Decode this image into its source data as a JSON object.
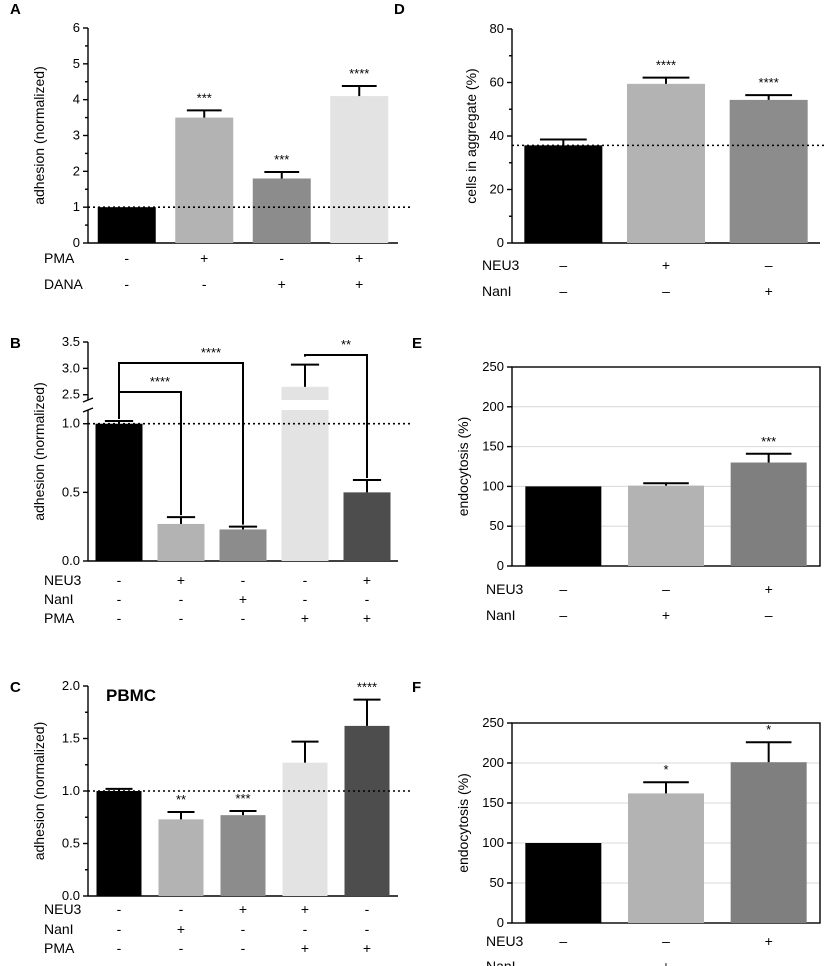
{
  "chart_data": [
    {
      "panel": "A",
      "type": "bar",
      "ylabel": "adhesion (normalized)",
      "ylim": [
        0,
        6
      ],
      "yticks": [
        0,
        1,
        2,
        3,
        4,
        5,
        6
      ],
      "ref_line": 1,
      "values": [
        1.0,
        3.5,
        1.8,
        4.1
      ],
      "errors": [
        0,
        0.2,
        0.18,
        0.28
      ],
      "sig": [
        "",
        "***",
        "***",
        "****"
      ],
      "colors": [
        "#000000",
        "#b3b3b3",
        "#8c8c8c",
        "#e3e3e3"
      ],
      "conditions": [
        {
          "label": "PMA",
          "signs": [
            "-",
            "+",
            "-",
            "+"
          ]
        },
        {
          "label": "DANA",
          "signs": [
            "-",
            "-",
            "+",
            "+"
          ]
        }
      ]
    },
    {
      "panel": "B",
      "type": "bar",
      "ylabel": "adhesion (normalized)",
      "ylim": [
        0,
        3.5
      ],
      "yticks": [
        "0.0",
        "0.5",
        "1.0",
        "2.5",
        "3.0",
        "3.5"
      ],
      "axis_break": [
        1.1,
        2.4
      ],
      "ref_line": 1,
      "values": [
        1.0,
        0.27,
        0.23,
        2.65,
        0.5
      ],
      "errors": [
        0.02,
        0.05,
        0.02,
        0.42,
        0.09
      ],
      "colors": [
        "#000000",
        "#b3b3b3",
        "#8c8c8c",
        "#e3e3e3",
        "#4d4d4d"
      ],
      "comparisons": [
        {
          "from": 0,
          "to": 1,
          "label": "****"
        },
        {
          "from": 0,
          "to": 2,
          "label": "****"
        },
        {
          "from": 3,
          "to": 4,
          "label": "**"
        }
      ],
      "conditions": [
        {
          "label": "NEU3",
          "signs": [
            "-",
            "+",
            "-",
            "-",
            "+"
          ]
        },
        {
          "label": "NanI",
          "signs": [
            "-",
            "-",
            "+",
            "-",
            "-"
          ]
        },
        {
          "label": "PMA",
          "signs": [
            "-",
            "-",
            "-",
            "+",
            "+"
          ]
        }
      ]
    },
    {
      "panel": "C",
      "type": "bar",
      "title": "PBMC",
      "ylabel": "adhesion (normalized)",
      "ylim": [
        0,
        2.0
      ],
      "yticks": [
        "0.0",
        "0.5",
        "1.0",
        "1.5",
        "2.0"
      ],
      "ref_line": 1,
      "values": [
        1.0,
        0.73,
        0.77,
        1.27,
        1.62
      ],
      "errors": [
        0.02,
        0.07,
        0.04,
        0.2,
        0.25
      ],
      "sig": [
        "",
        "**",
        "***",
        "",
        "****"
      ],
      "colors": [
        "#000000",
        "#b3b3b3",
        "#8c8c8c",
        "#e3e3e3",
        "#4d4d4d"
      ],
      "conditions": [
        {
          "label": "NEU3",
          "signs": [
            "-",
            "-",
            "+",
            "+",
            "-"
          ]
        },
        {
          "label": "NanI",
          "signs": [
            "-",
            "+",
            "-",
            "-",
            "-"
          ]
        },
        {
          "label": "PMA",
          "signs": [
            "-",
            "-",
            "-",
            "+",
            "+"
          ]
        }
      ]
    },
    {
      "panel": "D",
      "type": "bar",
      "ylabel": "cells in aggregate (%)",
      "ylim": [
        0,
        80
      ],
      "yticks": [
        0,
        20,
        40,
        60,
        80
      ],
      "ref_line": 36.5,
      "values": [
        36.5,
        59.5,
        53.5
      ],
      "errors": [
        2.2,
        2.3,
        1.8
      ],
      "sig": [
        "",
        "****",
        "****"
      ],
      "colors": [
        "#000000",
        "#b3b3b3",
        "#8c8c8c"
      ],
      "conditions": [
        {
          "label": "NEU3",
          "signs": [
            "–",
            "+",
            "–"
          ]
        },
        {
          "label": "NanI",
          "signs": [
            "–",
            "–",
            "+"
          ]
        }
      ]
    },
    {
      "panel": "E",
      "type": "bar",
      "ylabel": "endocytosis (%)",
      "ylim": [
        0,
        250
      ],
      "yticks": [
        0,
        50,
        100,
        150,
        200,
        250
      ],
      "grid": true,
      "values": [
        100,
        101,
        130
      ],
      "errors": [
        0,
        3,
        11
      ],
      "sig": [
        "",
        "",
        "***"
      ],
      "colors": [
        "#000000",
        "#b3b3b3",
        "#7f7f7f"
      ],
      "conditions": [
        {
          "label": "NEU3",
          "signs": [
            "–",
            "–",
            "+"
          ]
        },
        {
          "label": "NanI",
          "signs": [
            "–",
            "+",
            "–"
          ]
        }
      ]
    },
    {
      "panel": "F",
      "type": "bar",
      "ylabel": "endocytosis (%)",
      "ylim": [
        0,
        250
      ],
      "yticks": [
        0,
        50,
        100,
        150,
        200,
        250
      ],
      "grid": true,
      "values": [
        100,
        162,
        201
      ],
      "errors": [
        0,
        14,
        25
      ],
      "sig": [
        "",
        "*",
        "*"
      ],
      "colors": [
        "#000000",
        "#b3b3b3",
        "#7f7f7f"
      ],
      "conditions": [
        {
          "label": "NEU3",
          "signs": [
            "–",
            "–",
            "+"
          ]
        },
        {
          "label": "NanI",
          "signs": [
            "–",
            "+",
            "–"
          ]
        }
      ]
    }
  ]
}
